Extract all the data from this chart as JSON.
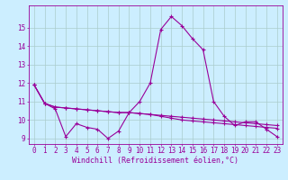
{
  "x": [
    0,
    1,
    2,
    3,
    4,
    5,
    6,
    7,
    8,
    9,
    10,
    11,
    12,
    13,
    14,
    15,
    16,
    17,
    18,
    19,
    20,
    21,
    22,
    23
  ],
  "line1": [
    11.9,
    10.9,
    10.6,
    9.1,
    9.8,
    9.6,
    9.5,
    9.0,
    9.4,
    10.4,
    11.0,
    12.0,
    14.9,
    15.6,
    15.1,
    14.4,
    13.8,
    11.0,
    10.2,
    9.7,
    9.9,
    9.9,
    9.5,
    9.1
  ],
  "line2": [
    11.9,
    10.9,
    10.7,
    10.65,
    10.6,
    10.55,
    10.5,
    10.45,
    10.4,
    10.4,
    10.35,
    10.3,
    10.25,
    10.2,
    10.15,
    10.1,
    10.05,
    10.0,
    9.95,
    9.9,
    9.85,
    9.8,
    9.75,
    9.7
  ],
  "line3": [
    11.9,
    10.9,
    10.7,
    10.65,
    10.6,
    10.55,
    10.5,
    10.45,
    10.4,
    10.4,
    10.35,
    10.3,
    10.2,
    10.1,
    10.0,
    9.95,
    9.9,
    9.85,
    9.8,
    9.75,
    9.7,
    9.65,
    9.6,
    9.55
  ],
  "bg_color": "#cceeff",
  "line_color": "#990099",
  "grid_color": "#aacccc",
  "ylim": [
    8.7,
    16.2
  ],
  "xlim": [
    -0.5,
    23.5
  ],
  "yticks": [
    9,
    10,
    11,
    12,
    13,
    14,
    15
  ],
  "xticks": [
    0,
    1,
    2,
    3,
    4,
    5,
    6,
    7,
    8,
    9,
    10,
    11,
    12,
    13,
    14,
    15,
    16,
    17,
    18,
    19,
    20,
    21,
    22,
    23
  ],
  "xlabel": "Windchill (Refroidissement éolien,°C)",
  "marker": "+",
  "linewidth": 0.8,
  "markersize": 3,
  "fontsize_axis": 5.5,
  "fontsize_xlabel": 6.0
}
